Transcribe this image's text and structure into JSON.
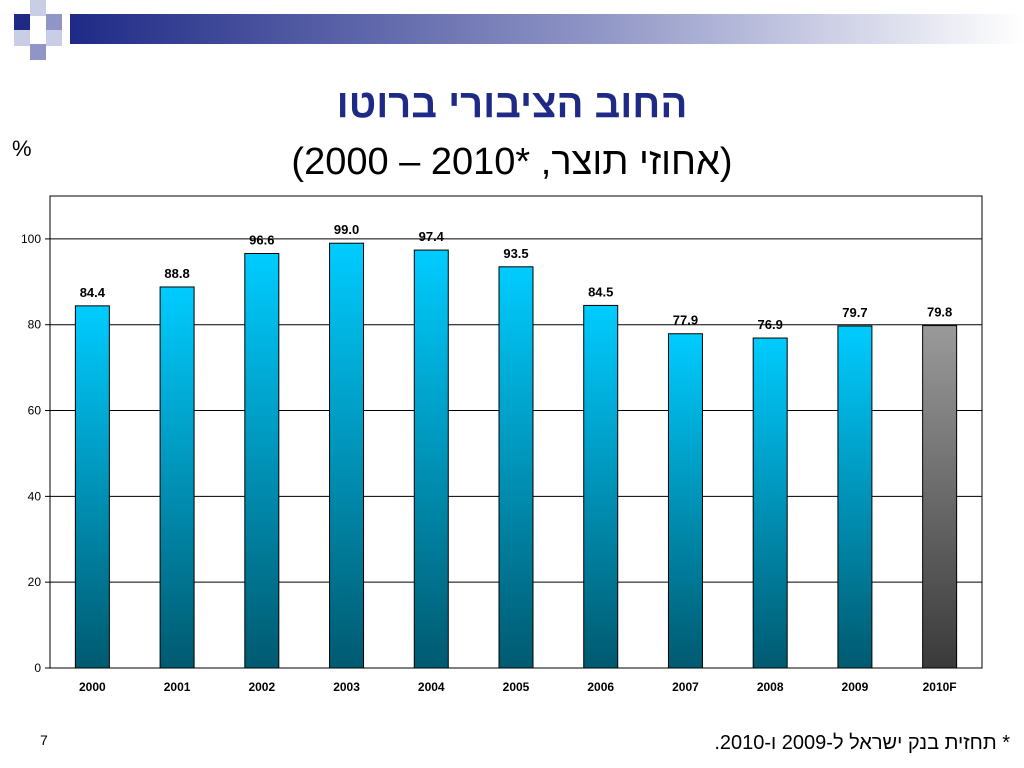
{
  "slide": {
    "title": "החוב הציבורי ברוטו",
    "subtitle": "(אחוזי תוצר, *2010 – 2000)",
    "unit": "%",
    "footnote": "* תחזית בנק ישראל ל-2009 ו-2010.",
    "page_number": "7",
    "colors": {
      "title": "#1f2a86",
      "banner_dark": "#1f2a86",
      "banner_light": "#c9cde6"
    }
  },
  "chart_data": {
    "type": "bar",
    "categories": [
      "2000",
      "2001",
      "2002",
      "2003",
      "2004",
      "2005",
      "2006",
      "2007",
      "2008",
      "2009",
      "2010F"
    ],
    "values": [
      84.4,
      88.8,
      96.6,
      99.0,
      97.4,
      93.5,
      84.5,
      77.9,
      76.9,
      79.7,
      79.8
    ],
    "value_labels": [
      "84.4",
      "88.8",
      "96.6",
      "99.0",
      "97.4",
      "93.5",
      "84.5",
      "77.9",
      "76.9",
      "79.7",
      "79.8"
    ],
    "ylim": [
      0,
      110
    ],
    "yticks": [
      0,
      20,
      40,
      60,
      80,
      100
    ],
    "grid": true,
    "legend": "none",
    "bar_colors": {
      "actual_top": "#00ccff",
      "actual_bottom": "#005a70",
      "forecast_top": "#9a9a9a",
      "forecast_bottom": "#3a3a3a"
    },
    "forecast_categories": [
      "2010F"
    ]
  }
}
